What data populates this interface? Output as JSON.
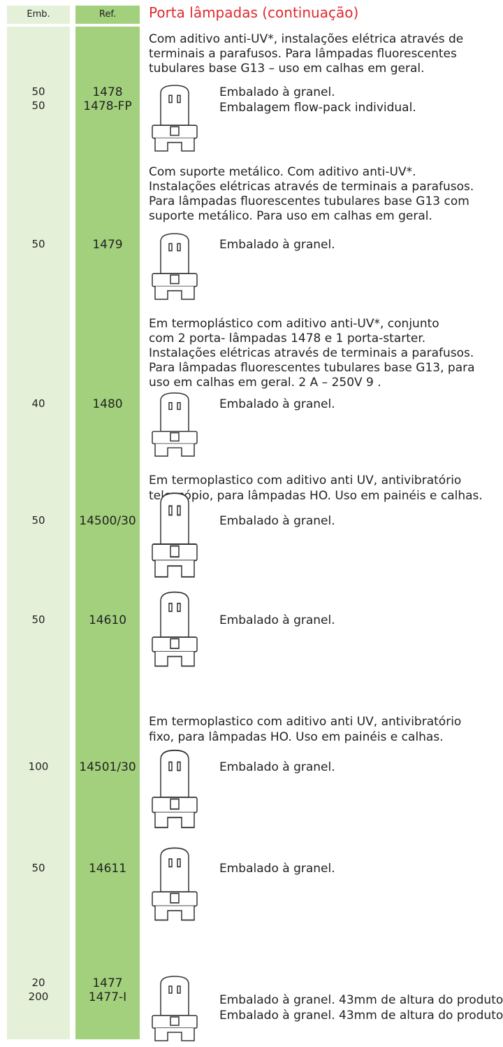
{
  "header": {
    "emb": "Emb.",
    "ref": "Ref.",
    "title": "Porta lâmpadas (continuação)"
  },
  "items": [
    {
      "description": [
        "Com aditivo anti-UV*, instalações elétrica através de",
        "terminais a parafusos. Para lâmpadas fluorescentes",
        "tubulares base G13 – uso em calhas em geral."
      ],
      "emb": [
        "50",
        "50"
      ],
      "ref": [
        "1478",
        "1478-FP"
      ],
      "packaging": [
        "Embalado à granel.",
        "Embalagem flow-pack individual."
      ]
    },
    {
      "description": [
        "Com suporte metálico. Com aditivo anti-UV*.",
        "Instalações elétricas através de terminais a parafusos.",
        "Para lâmpadas fluorescentes tubulares base G13 com",
        "suporte metálico. Para uso em calhas em geral."
      ],
      "emb": [
        "50"
      ],
      "ref": [
        "1479"
      ],
      "packaging": [
        "Embalado à granel."
      ]
    },
    {
      "description": [
        "Em termoplástico com aditivo anti-UV*, conjunto",
        "com 2 porta- lâmpadas 1478 e 1 porta-starter.",
        "Instalações elétricas através de terminais a parafusos.",
        "Para lâmpadas fluorescentes tubulares base G13, para",
        "uso em calhas em geral. 2 A – 250V    9  ."
      ],
      "emb": [
        "40"
      ],
      "ref": [
        "1480"
      ],
      "packaging": [
        "Embalado à granel."
      ]
    },
    {
      "description": [
        "Em termoplastico com aditivo anti UV, antivibratório",
        "telescópio, para lâmpadas HO. Uso em painéis e calhas."
      ],
      "emb": [
        "50"
      ],
      "ref": [
        "14500/30"
      ],
      "packaging": [
        "Embalado à granel."
      ]
    },
    {
      "description": [],
      "emb": [
        "50"
      ],
      "ref": [
        "14610"
      ],
      "packaging": [
        "Embalado à granel."
      ]
    },
    {
      "description": [
        "Em termoplastico com aditivo anti UV, antivibratório",
        "fixo, para lâmpadas HO. Uso em painéis e calhas."
      ],
      "emb": [
        "100"
      ],
      "ref": [
        "14501/30"
      ],
      "packaging": [
        "Embalado à granel."
      ]
    },
    {
      "description": [],
      "emb": [
        "50"
      ],
      "ref": [
        "14611"
      ],
      "packaging": [
        "Embalado à granel."
      ]
    },
    {
      "description": [],
      "emb": [
        "20",
        "200"
      ],
      "ref": [
        "1477",
        "1477-I"
      ],
      "packaging": [
        "Embalado à granel. 43mm de altura do produto.",
        "Embalado à granel. 43mm de altura do produto."
      ]
    }
  ]
}
